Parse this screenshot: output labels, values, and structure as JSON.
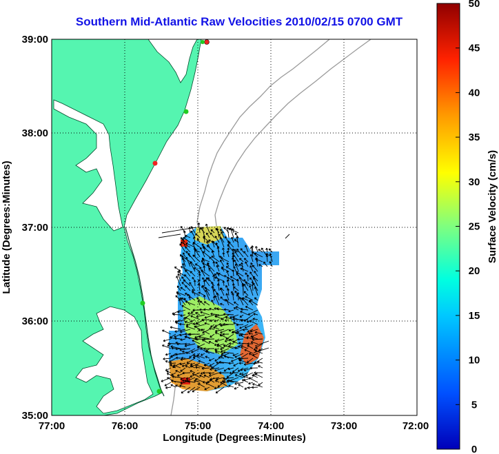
{
  "title": "Southern Mid-Atlantic Raw Velocities 2010/02/15 0700 GMT",
  "x_axis": {
    "label": "Longitude (Degrees:Minutes)",
    "ticks": [
      "77:00",
      "76:00",
      "75:00",
      "74:00",
      "73:00",
      "72:00"
    ]
  },
  "y_axis": {
    "label": "Latitude (Degrees:Minutes)",
    "ticks": [
      "39:00",
      "38:00",
      "37:00",
      "36:00",
      "35:00"
    ]
  },
  "colorbar": {
    "label": "Surface Velocity (cm/s)",
    "ticks": [
      "0",
      "5",
      "10",
      "15",
      "20",
      "25",
      "30",
      "35",
      "40",
      "45",
      "50"
    ],
    "min": 0,
    "max": 50
  },
  "colors": {
    "land": "#55f5b0",
    "coastline": "#004a2a",
    "title": "#1212e6",
    "bathymetry": "#9a9a9a",
    "station_active": "#22cc22",
    "station_alert": "#ee2222"
  }
}
